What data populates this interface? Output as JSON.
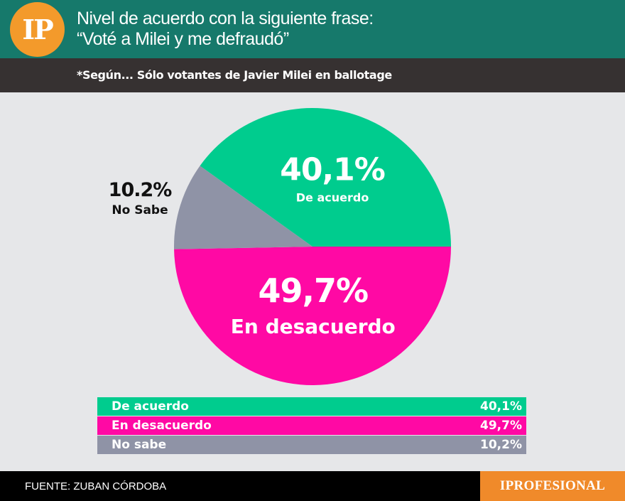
{
  "header": {
    "logo_text": "IP",
    "title_line1": "Nivel de acuerdo con la siguiente frase:",
    "title_line2": "“Voté a Milei y me defraudó”",
    "subtitle": "*Según... Sólo votantes de Javier Milei en ballotage"
  },
  "chart_data": {
    "type": "pie",
    "slices": [
      {
        "label": "De acuerdo",
        "value": 40.1,
        "value_text": "40,1%",
        "color": "#00cc8e"
      },
      {
        "label": "En desacuerdo",
        "value": 49.7,
        "value_text": "49,7%",
        "color": "#ff09a4"
      },
      {
        "label": "No Sabe",
        "value": 10.2,
        "value_text": "10.2%",
        "color": "#8f93a6"
      }
    ]
  },
  "legend": {
    "items": [
      {
        "label": "De acuerdo",
        "value": "40,1%",
        "color": "#00cc8e"
      },
      {
        "label": "En desacuerdo",
        "value": "49,7%",
        "color": "#ff09a4"
      },
      {
        "label": "No sabe",
        "value": "10,2%",
        "color": "#8f93a6"
      }
    ]
  },
  "footer": {
    "source": "FUENTE: ZUBAN CÓRDOBA",
    "brand": "IPROFESIONAL"
  }
}
